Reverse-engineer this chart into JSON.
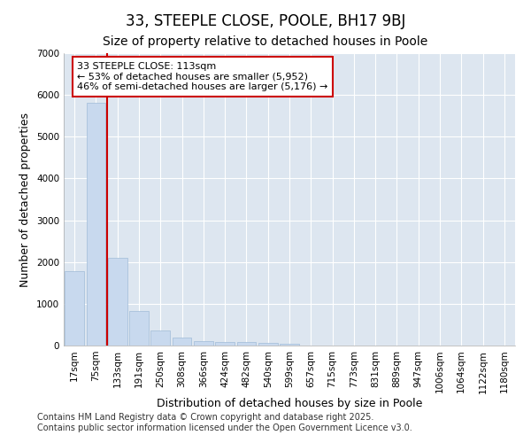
{
  "title": "33, STEEPLE CLOSE, POOLE, BH17 9BJ",
  "subtitle": "Size of property relative to detached houses in Poole",
  "xlabel": "Distribution of detached houses by size in Poole",
  "ylabel": "Number of detached properties",
  "categories": [
    "17sqm",
    "75sqm",
    "133sqm",
    "191sqm",
    "250sqm",
    "308sqm",
    "366sqm",
    "424sqm",
    "482sqm",
    "540sqm",
    "599sqm",
    "657sqm",
    "715sqm",
    "773sqm",
    "831sqm",
    "889sqm",
    "947sqm",
    "1006sqm",
    "1064sqm",
    "1122sqm",
    "1180sqm"
  ],
  "values": [
    1780,
    5820,
    2090,
    820,
    360,
    200,
    115,
    95,
    80,
    55,
    40,
    5,
    3,
    2,
    2,
    1,
    1,
    1,
    1,
    0,
    0
  ],
  "bar_color": "#c8d9ee",
  "bar_edge_color": "#a0bcd8",
  "vline_x": 1.5,
  "vline_color": "#cc0000",
  "annotation_line1": "33 STEEPLE CLOSE: 113sqm",
  "annotation_line2": "← 53% of detached houses are smaller (5,952)",
  "annotation_line3": "46% of semi-detached houses are larger (5,176) →",
  "annotation_box_color": "#cc0000",
  "ylim": [
    0,
    7000
  ],
  "fig_background_color": "#ffffff",
  "plot_background_color": "#dde6f0",
  "grid_color": "#ffffff",
  "footer_line1": "Contains HM Land Registry data © Crown copyright and database right 2025.",
  "footer_line2": "Contains public sector information licensed under the Open Government Licence v3.0.",
  "title_fontsize": 12,
  "subtitle_fontsize": 10,
  "axis_label_fontsize": 9,
  "tick_fontsize": 7.5,
  "annotation_fontsize": 8,
  "footer_fontsize": 7
}
